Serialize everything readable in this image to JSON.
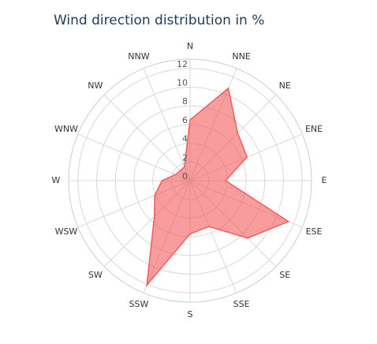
{
  "chart_data": {
    "type": "radar",
    "title": "Wind direction distribution in %",
    "categories": [
      "N",
      "NNE",
      "NE",
      "ENE",
      "E",
      "ESE",
      "SE",
      "SSE",
      "S",
      "SSW",
      "SW",
      "WSW",
      "W",
      "WNW",
      "NW",
      "NNW"
    ],
    "values": [
      6.5,
      10.7,
      7.2,
      6.6,
      3.8,
      11.4,
      8.7,
      5.3,
      5.7,
      12.1,
      5.4,
      4.1,
      3.0,
      1.7,
      1.5,
      1.6
    ],
    "color": "#f45b5b",
    "ylim": [
      0,
      13
    ],
    "yticks": [
      0,
      2,
      4,
      6,
      8,
      10,
      12
    ],
    "grid": true
  }
}
